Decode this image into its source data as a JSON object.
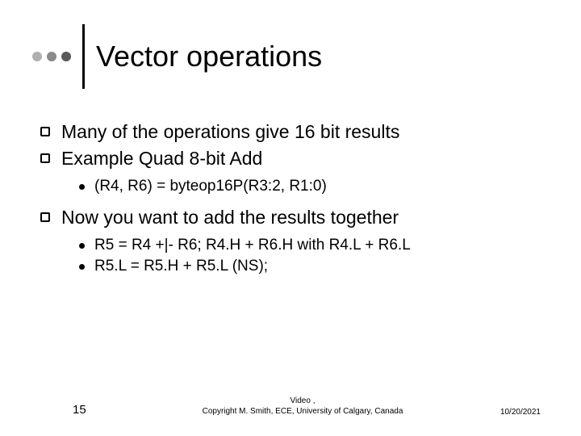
{
  "header": {
    "title": "Vector operations",
    "dot_colors": [
      "#b0b0b0",
      "#8a8a8a",
      "#5a5a5a"
    ],
    "rule_color": "#000000"
  },
  "bullets": {
    "b1": "Many of the operations give 16 bit results",
    "b2": "Example Quad 8-bit Add",
    "b2_sub1": "(R4, R6) = byteop16P(R3:2, R1:0)",
    "b3": "Now you want to add the results together",
    "b3_sub1": "R5 = R4 +|- R6;    R4.H + R6.H with R4.L + R6.L",
    "b3_sub2": "R5.L = R5.H + R5.L (NS);"
  },
  "footer": {
    "slide_number": "15",
    "center_line1": "Video                                  ,",
    "center_line2": "Copyright M. Smith, ECE, University of Calgary, Canada",
    "date": "10/20/2021"
  },
  "typography": {
    "title_fontsize": 36,
    "level1_fontsize": 23,
    "level2_fontsize": 19,
    "footer_fontsize": 10
  },
  "colors": {
    "background": "#ffffff",
    "text": "#000000"
  }
}
